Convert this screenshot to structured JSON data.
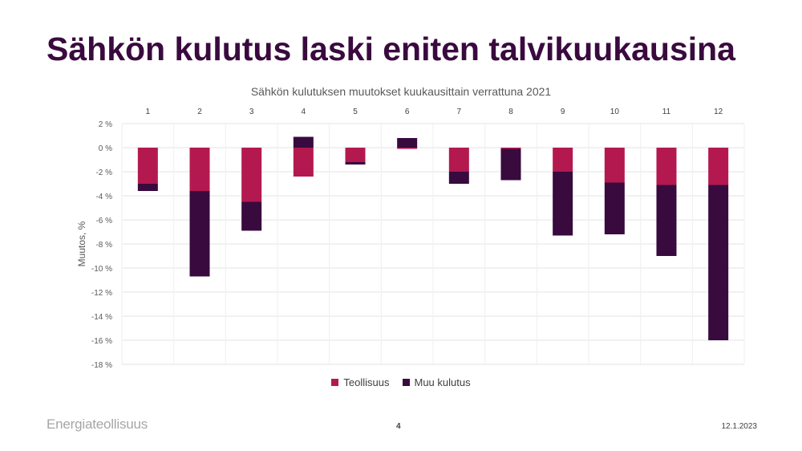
{
  "slide": {
    "title": "Sähkön kulutus laski eniten talvikuukausina",
    "page_number": "4",
    "date": "12.1.2023",
    "logo_text": "Energiateollisuus"
  },
  "colors": {
    "series1": "#b3194f",
    "series2": "#380a3e",
    "grid": "#e3e3e3"
  },
  "chart_data": {
    "type": "bar",
    "stacked": true,
    "title": "Sähkön kulutuksen muutokset kuukausittain verrattuna 2021",
    "ylabel": "Muutos, %",
    "xlabel": "",
    "categories": [
      "1",
      "2",
      "3",
      "4",
      "5",
      "6",
      "7",
      "8",
      "9",
      "10",
      "11",
      "12"
    ],
    "category_axis_position": "top",
    "ylim": [
      -18,
      2
    ],
    "yticks": [
      2,
      0,
      -2,
      -4,
      -6,
      -8,
      -10,
      -12,
      -14,
      -16,
      -18
    ],
    "ytick_labels": [
      "2 %",
      "0 %",
      "-2 %",
      "-4 %",
      "-6 %",
      "-8 %",
      "-10 %",
      "-12 %",
      "-14 %",
      "-16 %",
      "-18 %"
    ],
    "grid": true,
    "legend": "bottom",
    "series": [
      {
        "name": "Teollisuus",
        "values": [
          -3.0,
          -3.6,
          -4.5,
          -2.4,
          -1.2,
          -0.1,
          -2.0,
          -0.1,
          -2.0,
          -2.9,
          -3.1,
          -3.1
        ]
      },
      {
        "name": "Muu kulutus",
        "values": [
          -0.6,
          -7.1,
          -2.4,
          0.9,
          -0.2,
          0.8,
          -1.0,
          -2.6,
          -5.3,
          -4.3,
          -5.9,
          -12.9
        ]
      }
    ]
  }
}
